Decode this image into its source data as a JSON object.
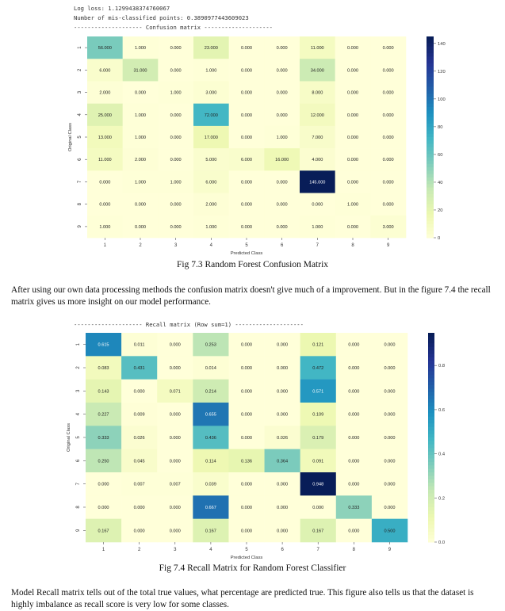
{
  "top_text": {
    "log_loss": "Log loss: 1.1299438374760067",
    "misclassified": "Number of mis-classified points: 0.3890977443609023",
    "header1": "-------------------- Confusion matrix --------------------",
    "header2": "-------------------- Recall matrix (Row sum=1) --------------------"
  },
  "captions": {
    "fig1": "Fig 7.3 Random Forest Confusion Matrix",
    "fig2": "Fig 7.4 Recall Matrix for Random Forest Classifier"
  },
  "paragraphs": {
    "p1": "After using our own data processing methods the confusion matrix doesn't give much of a improvement. But in the figure 7.4 the recall matrix gives us more insight on our model performance.",
    "p2": "Model Recall matrix tells out of the total true values, what percentage are predicted true. This figure also tells us that the dataset is highly imbalance as recall score is very low for some classes."
  },
  "chart_data": [
    {
      "type": "heatmap",
      "title": "Confusion matrix",
      "xlabel": "Predicted Class",
      "ylabel": "Original Class",
      "x_categories": [
        "1",
        "2",
        "3",
        "4",
        "5",
        "6",
        "7",
        "8",
        "9"
      ],
      "y_categories": [
        "1",
        "2",
        "3",
        "4",
        "5",
        "6",
        "7",
        "8",
        "9"
      ],
      "colormap": "YlGnBu",
      "vmin": 0,
      "vmax": 145,
      "colorbar_ticks": [
        "0",
        "20",
        "40",
        "60",
        "80",
        "100",
        "120",
        "140"
      ],
      "colorbar_tick_values": [
        0,
        20,
        40,
        60,
        80,
        100,
        120,
        140
      ],
      "decimals": 3,
      "values": [
        [
          56,
          1,
          0,
          23,
          0,
          0,
          11,
          0,
          0
        ],
        [
          6,
          31,
          0,
          1,
          0,
          0,
          34,
          0,
          0
        ],
        [
          2,
          0,
          1,
          3,
          0,
          0,
          8,
          0,
          0
        ],
        [
          25,
          1,
          0,
          72,
          0,
          0,
          12,
          0,
          0
        ],
        [
          13,
          1,
          0,
          17,
          0,
          1,
          7,
          0,
          0
        ],
        [
          11,
          2,
          0,
          5,
          6,
          16,
          4,
          0,
          0
        ],
        [
          0,
          1,
          1,
          6,
          0,
          0,
          145,
          0,
          0
        ],
        [
          0,
          0,
          0,
          2,
          0,
          0,
          0,
          1,
          0
        ],
        [
          1,
          0,
          0,
          1,
          0,
          0,
          1,
          0,
          3
        ]
      ]
    },
    {
      "type": "heatmap",
      "title": "Recall matrix (Row sum=1)",
      "xlabel": "Predicted Class",
      "ylabel": "Original Class",
      "x_categories": [
        "1",
        "2",
        "3",
        "4",
        "5",
        "6",
        "7",
        "8",
        "9"
      ],
      "y_categories": [
        "1",
        "2",
        "3",
        "4",
        "5",
        "6",
        "7",
        "8",
        "9"
      ],
      "colormap": "YlGnBu",
      "vmin": 0,
      "vmax": 0.948,
      "colorbar_ticks": [
        "0.0",
        "0.2",
        "0.4",
        "0.6",
        "0.8"
      ],
      "colorbar_tick_values": [
        0,
        0.2,
        0.4,
        0.6,
        0.8
      ],
      "decimals": 3,
      "values": [
        [
          0.615,
          0.011,
          0.0,
          0.253,
          0.0,
          0.0,
          0.121,
          0.0,
          0.0
        ],
        [
          0.083,
          0.431,
          0.0,
          0.014,
          0.0,
          0.0,
          0.472,
          0.0,
          0.0
        ],
        [
          0.143,
          0.0,
          0.071,
          0.214,
          0.0,
          0.0,
          0.571,
          0.0,
          0.0
        ],
        [
          0.227,
          0.009,
          0.0,
          0.655,
          0.0,
          0.0,
          0.109,
          0.0,
          0.0
        ],
        [
          0.333,
          0.026,
          0.0,
          0.436,
          0.0,
          0.026,
          0.179,
          0.0,
          0.0
        ],
        [
          0.25,
          0.045,
          0.0,
          0.114,
          0.136,
          0.364,
          0.091,
          0.0,
          0.0
        ],
        [
          0.0,
          0.007,
          0.007,
          0.039,
          0.0,
          0.0,
          0.948,
          0.0,
          0.0
        ],
        [
          0.0,
          0.0,
          0.0,
          0.667,
          0.0,
          0.0,
          0.0,
          0.333,
          0.0
        ],
        [
          0.167,
          0.0,
          0.0,
          0.167,
          0.0,
          0.0,
          0.167,
          0.0,
          0.5
        ]
      ]
    }
  ]
}
